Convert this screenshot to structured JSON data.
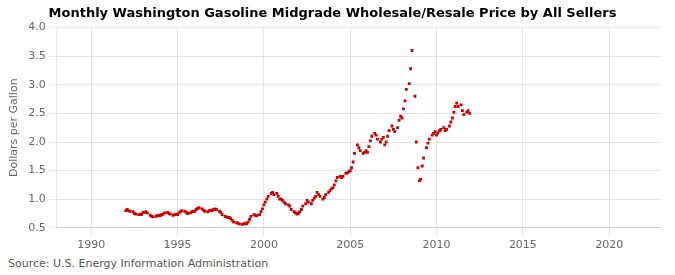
{
  "chart_data": {
    "type": "scatter",
    "title": "Monthly Washington Gasoline Midgrade Wholesale/Resale Price by All Sellers",
    "ylabel": "Dollars per Gallon",
    "source": "Source: U.S. Energy Information Administration",
    "color": "#CC0000",
    "marker": "square",
    "grid": true,
    "xlim": [
      1988.0,
      2023.0
    ],
    "ylim": [
      0.5,
      4.0
    ],
    "xticks": [
      1990,
      1995,
      2000,
      2005,
      2010,
      2015,
      2020
    ],
    "yticks": [
      0.5,
      {
        "value": 1.0,
        "label": "1.0"
      },
      1.5,
      {
        "value": 2.0,
        "label": "2.0"
      },
      2.5,
      {
        "value": 3.0,
        "label": "3.0"
      },
      3.5,
      {
        "value": 4.0,
        "label": "4.0"
      }
    ],
    "x": [
      1992.0,
      1992.08,
      1992.17,
      1992.25,
      1992.42,
      1992.5,
      1992.58,
      1992.75,
      1992.83,
      1992.92,
      1993.0,
      1993.08,
      1993.17,
      1993.25,
      1993.42,
      1993.5,
      1993.58,
      1993.75,
      1993.83,
      1993.92,
      1994.0,
      1994.08,
      1994.17,
      1994.25,
      1994.42,
      1994.5,
      1994.58,
      1994.75,
      1994.83,
      1994.92,
      1995.0,
      1995.08,
      1995.17,
      1995.25,
      1995.42,
      1995.5,
      1995.58,
      1995.75,
      1995.83,
      1995.92,
      1996.0,
      1996.08,
      1996.17,
      1996.25,
      1996.42,
      1996.5,
      1996.58,
      1996.75,
      1996.83,
      1996.92,
      1997.0,
      1997.08,
      1997.17,
      1997.25,
      1997.42,
      1997.5,
      1997.58,
      1997.75,
      1997.83,
      1997.92,
      1998.0,
      1998.08,
      1998.17,
      1998.25,
      1998.42,
      1998.5,
      1998.58,
      1998.75,
      1998.83,
      1998.92,
      1999.0,
      1999.08,
      1999.17,
      1999.25,
      1999.42,
      1999.5,
      1999.58,
      1999.75,
      1999.83,
      1999.92,
      2000.0,
      2000.08,
      2000.17,
      2000.25,
      2000.42,
      2000.5,
      2000.58,
      2000.75,
      2000.83,
      2000.92,
      2001.0,
      2001.08,
      2001.17,
      2001.25,
      2001.42,
      2001.5,
      2001.58,
      2001.75,
      2001.83,
      2001.92,
      2002.0,
      2002.08,
      2002.17,
      2002.25,
      2002.42,
      2002.5,
      2002.58,
      2002.75,
      2002.83,
      2002.92,
      2003.0,
      2003.08,
      2003.17,
      2003.25,
      2003.42,
      2003.5,
      2003.58,
      2003.75,
      2003.83,
      2003.92,
      2004.0,
      2004.08,
      2004.17,
      2004.25,
      2004.42,
      2004.5,
      2004.58,
      2004.75,
      2004.83,
      2004.92,
      2005.0,
      2005.08,
      2005.17,
      2005.25,
      2005.42,
      2005.5,
      2005.58,
      2005.75,
      2005.83,
      2005.92,
      2006.0,
      2006.08,
      2006.17,
      2006.25,
      2006.42,
      2006.5,
      2006.58,
      2006.75,
      2006.83,
      2006.92,
      2007.0,
      2007.08,
      2007.17,
      2007.25,
      2007.42,
      2007.5,
      2007.58,
      2007.75,
      2007.83,
      2007.92,
      2008.0,
      2008.08,
      2008.17,
      2008.25,
      2008.42,
      2008.5,
      2008.58,
      2008.75,
      2008.83,
      2008.92,
      2009.0,
      2009.08,
      2009.17,
      2009.25,
      2009.42,
      2009.5,
      2009.58,
      2009.75,
      2009.83,
      2009.92,
      2010.0,
      2010.08,
      2010.17,
      2010.25,
      2010.42,
      2010.5,
      2010.58,
      2010.75,
      2010.83,
      2010.92,
      2011.0,
      2011.08,
      2011.17,
      2011.25,
      2011.42,
      2011.5,
      2011.58,
      2011.75,
      2011.83,
      2011.92
    ],
    "values": [
      0.8,
      0.82,
      0.8,
      0.79,
      0.78,
      0.75,
      0.74,
      0.73,
      0.74,
      0.73,
      0.77,
      0.77,
      0.78,
      0.76,
      0.72,
      0.7,
      0.69,
      0.7,
      0.71,
      0.72,
      0.71,
      0.73,
      0.74,
      0.76,
      0.77,
      0.75,
      0.74,
      0.72,
      0.73,
      0.74,
      0.73,
      0.76,
      0.78,
      0.8,
      0.79,
      0.77,
      0.75,
      0.76,
      0.78,
      0.79,
      0.79,
      0.82,
      0.84,
      0.85,
      0.83,
      0.81,
      0.79,
      0.78,
      0.8,
      0.81,
      0.8,
      0.82,
      0.83,
      0.82,
      0.79,
      0.77,
      0.73,
      0.7,
      0.69,
      0.68,
      0.68,
      0.66,
      0.63,
      0.6,
      0.59,
      0.58,
      0.57,
      0.56,
      0.57,
      0.58,
      0.57,
      0.6,
      0.65,
      0.7,
      0.73,
      0.72,
      0.71,
      0.73,
      0.78,
      0.83,
      0.9,
      0.95,
      1.0,
      1.05,
      1.1,
      1.12,
      1.08,
      1.1,
      1.05,
      1.0,
      1.0,
      0.98,
      0.95,
      0.92,
      0.9,
      0.88,
      0.82,
      0.78,
      0.76,
      0.74,
      0.75,
      0.78,
      0.82,
      0.88,
      0.92,
      0.98,
      0.95,
      0.92,
      0.98,
      1.02,
      1.05,
      1.12,
      1.08,
      1.05,
      1.0,
      1.03,
      1.08,
      1.12,
      1.15,
      1.18,
      1.2,
      1.25,
      1.32,
      1.38,
      1.4,
      1.38,
      1.4,
      1.45,
      1.46,
      1.48,
      1.5,
      1.55,
      1.65,
      1.8,
      1.95,
      1.9,
      1.85,
      1.8,
      1.82,
      1.85,
      1.82,
      1.92,
      2.02,
      2.1,
      2.15,
      2.12,
      2.05,
      2.0,
      2.05,
      2.08,
      1.95,
      2.0,
      2.1,
      2.2,
      2.28,
      2.22,
      2.18,
      2.25,
      2.38,
      2.45,
      2.42,
      2.58,
      2.72,
      2.92,
      3.02,
      3.28,
      3.6,
      2.8,
      2.0,
      1.55,
      1.32,
      1.35,
      1.58,
      1.72,
      1.9,
      1.98,
      2.05,
      2.12,
      2.15,
      2.18,
      2.12,
      2.16,
      2.2,
      2.22,
      2.25,
      2.2,
      2.22,
      2.28,
      2.35,
      2.42,
      2.52,
      2.62,
      2.68,
      2.62,
      2.65,
      2.55,
      2.48,
      2.52,
      2.55,
      2.5
    ]
  }
}
